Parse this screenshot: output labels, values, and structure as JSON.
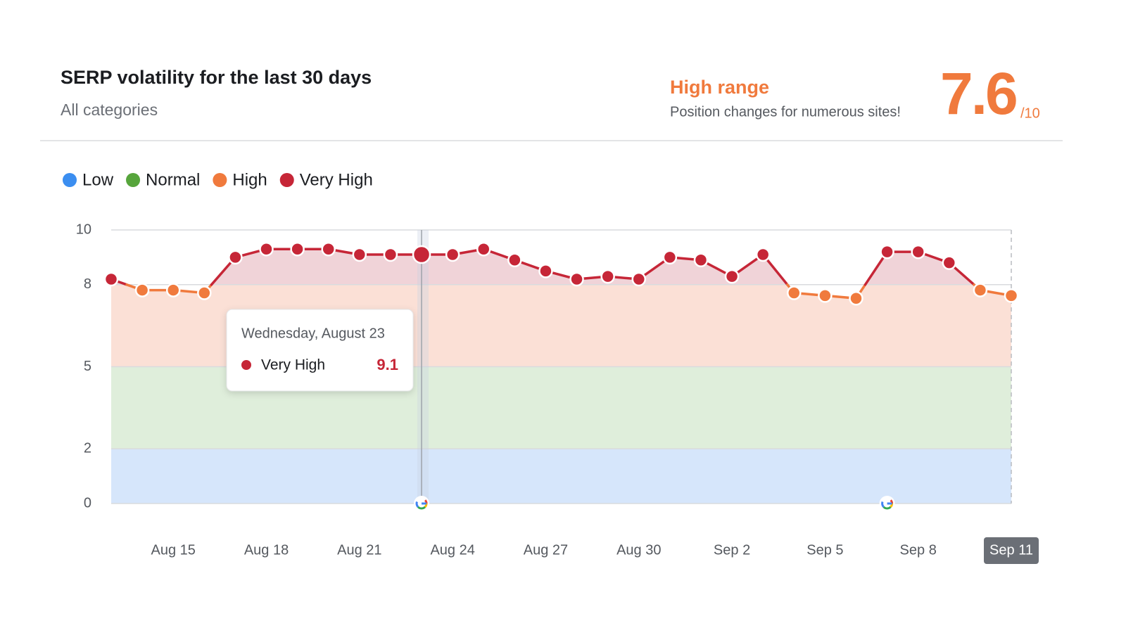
{
  "chart_data": {
    "type": "line",
    "title": "SERP volatility for the last 30 days",
    "subtitle": "All categories",
    "status_title": "High range",
    "status_text": "Position changes for numerous sites!",
    "score": 7.6,
    "score_suffix": "/10",
    "bands": [
      {
        "name": "Low",
        "color": "#3b8ef0",
        "fill": "#d6e6fb",
        "range": [
          0,
          2
        ]
      },
      {
        "name": "Normal",
        "color": "#57a53c",
        "fill": "#dfeedb",
        "range": [
          2,
          5
        ]
      },
      {
        "name": "High",
        "color": "#f07a3d",
        "fill": "#fbe0d6",
        "range": [
          5,
          8
        ]
      },
      {
        "name": "Very High",
        "color": "#c62637",
        "fill": "#f0d3d8",
        "range": [
          8,
          10
        ]
      }
    ],
    "categories": [
      null,
      null,
      "Aug 15",
      null,
      null,
      "Aug 18",
      null,
      null,
      "Aug 21",
      null,
      null,
      "Aug 24",
      null,
      null,
      "Aug 27",
      null,
      null,
      "Aug 30",
      null,
      null,
      "Sep 2",
      null,
      null,
      "Sep 5",
      null,
      null,
      "Sep 8",
      null,
      null,
      "Sep 11"
    ],
    "values": [
      8.2,
      7.8,
      7.8,
      7.7,
      9.0,
      9.3,
      9.3,
      9.3,
      9.1,
      9.1,
      9.1,
      9.1,
      9.3,
      8.9,
      8.5,
      8.2,
      8.3,
      8.2,
      9.0,
      8.9,
      8.3,
      9.1,
      7.7,
      7.6,
      7.5,
      9.2,
      9.2,
      8.8,
      7.8,
      7.6
    ],
    "ylim": [
      0,
      10
    ],
    "yticks": [
      0,
      2,
      5,
      8,
      10
    ],
    "grid": true,
    "google_update_indices": [
      10,
      25
    ],
    "tooltip": {
      "index": 10,
      "title": "Wednesday, August 23",
      "label": "Very High",
      "value": 9.1
    }
  }
}
